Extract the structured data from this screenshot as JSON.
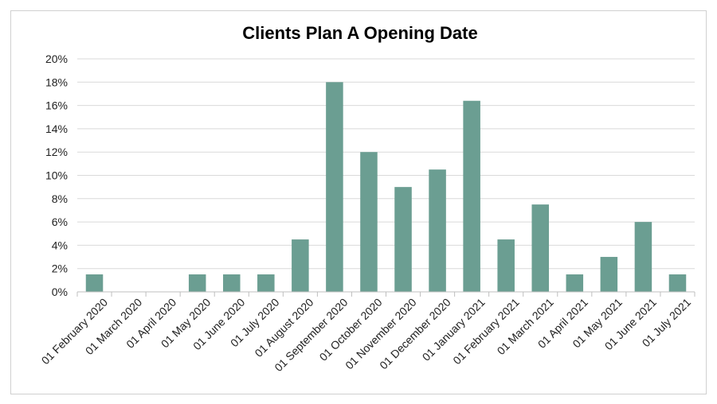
{
  "chart_data": {
    "type": "bar",
    "title": "Clients Plan A Opening Date",
    "xlabel": "",
    "ylabel": "",
    "ylim": [
      0,
      20
    ],
    "y_ticks": [
      "0%",
      "2%",
      "4%",
      "6%",
      "8%",
      "10%",
      "12%",
      "14%",
      "16%",
      "18%",
      "20%"
    ],
    "grid": true,
    "legend": "none",
    "bar_color": "#6b9e92",
    "categories": [
      "01 February 2020",
      "01 March 2020",
      "01 April 2020",
      "01 May 2020",
      "01 June 2020",
      "01 July 2020",
      "01 August 2020",
      "01 September 2020",
      "01 October 2020",
      "01 November 2020",
      "01 December 2020",
      "01 January 2021",
      "01 February 2021",
      "01 March 2021",
      "01 April 2021",
      "01 May 2021",
      "01 June 2021",
      "01 July 2021"
    ],
    "values": [
      1.5,
      0,
      0,
      1.5,
      1.5,
      1.5,
      4.5,
      18.0,
      12.0,
      9.0,
      10.5,
      16.4,
      4.5,
      7.5,
      1.5,
      3.0,
      6.0,
      1.5
    ]
  }
}
